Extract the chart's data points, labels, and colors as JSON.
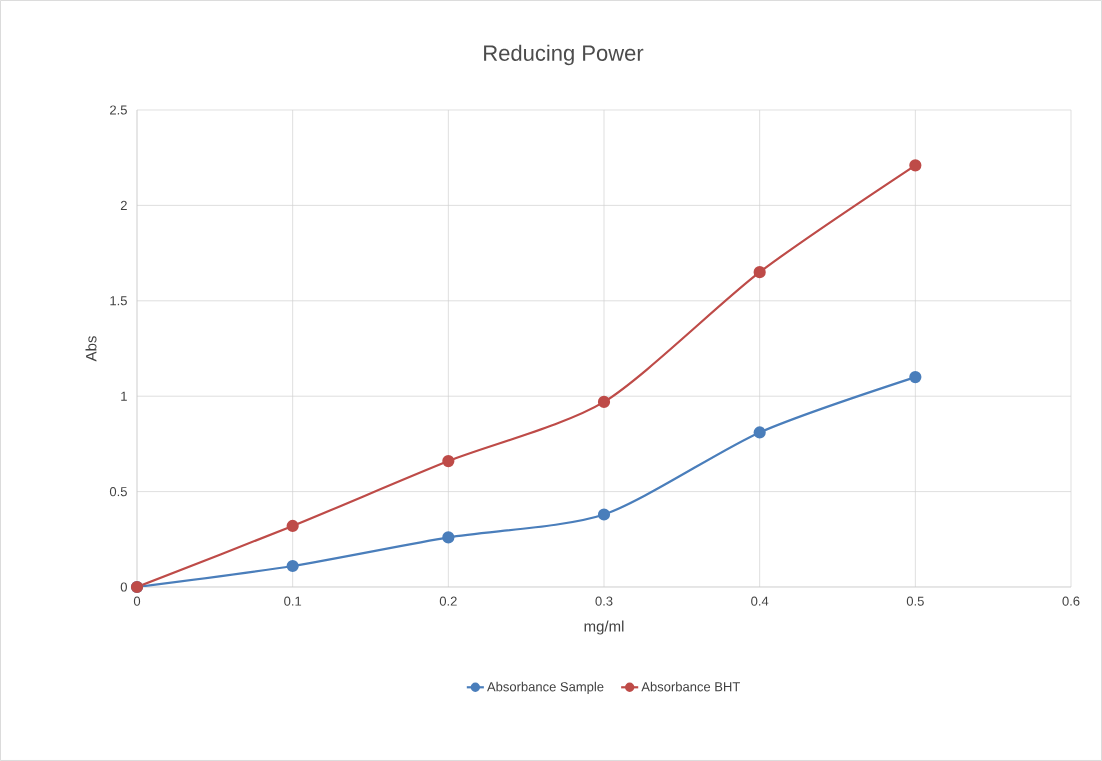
{
  "chart_data": {
    "type": "line",
    "title": "Reducing Power",
    "xlabel": "mg/ml",
    "ylabel": "Abs",
    "x": [
      0,
      0.1,
      0.2,
      0.3,
      0.4,
      0.5
    ],
    "series": [
      {
        "name": "Absorbance Sample",
        "color": "#4a7ebb",
        "values": [
          0,
          0.11,
          0.26,
          0.38,
          0.81,
          1.1
        ]
      },
      {
        "name": "Absorbance BHT",
        "color": "#be4b48",
        "values": [
          0,
          0.32,
          0.66,
          0.97,
          1.65,
          2.21
        ]
      }
    ],
    "xlim": [
      0,
      0.6
    ],
    "xticks": [
      0,
      0.1,
      0.2,
      0.3,
      0.4,
      0.5,
      0.6
    ],
    "ylim": [
      0,
      2.5
    ],
    "yticks": [
      0,
      0.5,
      1,
      1.5,
      2,
      2.5
    ],
    "grid": true,
    "legend": "bottom",
    "marker": "circle",
    "line_style": "solid"
  }
}
